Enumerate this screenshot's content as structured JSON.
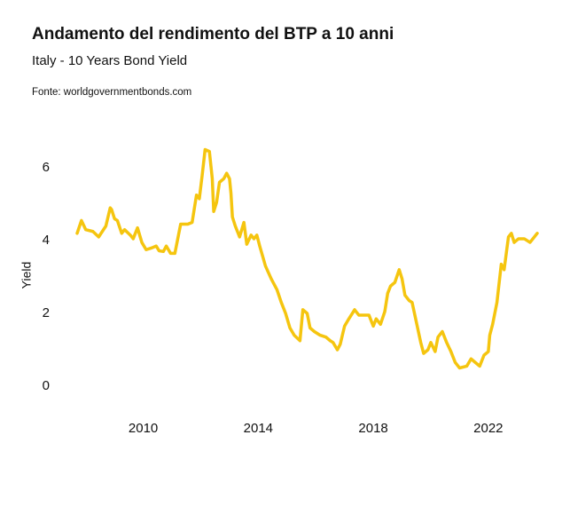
{
  "chart_data": {
    "type": "line",
    "title": "Andamento del rendimento del BTP a 10 anni",
    "subtitle": "Italy - 10 Years Bond Yield",
    "source": "Fonte: worldgovernmentbonds.com",
    "y_label": "Yield",
    "color": "#f5c50f",
    "grid": false,
    "x": [
      2007.7,
      2007.85,
      2008.0,
      2008.25,
      2008.45,
      2008.7,
      2008.85,
      2008.9,
      2009.0,
      2009.1,
      2009.25,
      2009.35,
      2009.55,
      2009.65,
      2009.8,
      2009.95,
      2010.1,
      2010.3,
      2010.45,
      2010.55,
      2010.7,
      2010.8,
      2010.95,
      2011.1,
      2011.3,
      2011.55,
      2011.7,
      2011.85,
      2011.95,
      2012.05,
      2012.15,
      2012.3,
      2012.4,
      2012.45,
      2012.55,
      2012.65,
      2012.8,
      2012.9,
      2013.0,
      2013.05,
      2013.1,
      2013.2,
      2013.35,
      2013.5,
      2013.6,
      2013.75,
      2013.85,
      2013.95,
      2014.05,
      2014.25,
      2014.45,
      2014.65,
      2014.8,
      2014.95,
      2015.1,
      2015.25,
      2015.45,
      2015.55,
      2015.7,
      2015.8,
      2015.95,
      2016.15,
      2016.35,
      2016.5,
      2016.6,
      2016.75,
      2016.85,
      2017.0,
      2017.15,
      2017.35,
      2017.5,
      2017.7,
      2017.85,
      2018.0,
      2018.1,
      2018.25,
      2018.4,
      2018.5,
      2018.6,
      2018.75,
      2018.9,
      2019.0,
      2019.1,
      2019.25,
      2019.35,
      2019.5,
      2019.65,
      2019.75,
      2019.9,
      2020.0,
      2020.15,
      2020.25,
      2020.4,
      2020.55,
      2020.7,
      2020.85,
      2021.0,
      2021.25,
      2021.4,
      2021.55,
      2021.7,
      2021.85,
      2022.0,
      2022.05,
      2022.15,
      2022.3,
      2022.45,
      2022.55,
      2022.7,
      2022.8,
      2022.9,
      2023.05,
      2023.25,
      2023.45,
      2023.7
    ],
    "values": [
      4.2,
      4.55,
      4.3,
      4.25,
      4.1,
      4.4,
      4.9,
      4.85,
      4.6,
      4.55,
      4.2,
      4.3,
      4.15,
      4.05,
      4.35,
      3.95,
      3.75,
      3.8,
      3.85,
      3.72,
      3.7,
      3.85,
      3.65,
      3.65,
      4.45,
      4.45,
      4.5,
      5.25,
      5.15,
      5.8,
      6.5,
      6.45,
      5.7,
      4.8,
      5.05,
      5.6,
      5.7,
      5.85,
      5.7,
      5.3,
      4.65,
      4.4,
      4.1,
      4.5,
      3.9,
      4.15,
      4.05,
      4.15,
      3.85,
      3.3,
      2.95,
      2.65,
      2.3,
      2.0,
      1.6,
      1.4,
      1.25,
      2.1,
      2.0,
      1.6,
      1.5,
      1.4,
      1.35,
      1.25,
      1.2,
      1.0,
      1.15,
      1.65,
      1.85,
      2.1,
      1.95,
      1.95,
      1.95,
      1.65,
      1.85,
      1.7,
      2.05,
      2.55,
      2.75,
      2.85,
      3.2,
      2.95,
      2.5,
      2.35,
      2.3,
      1.75,
      1.2,
      0.9,
      1.0,
      1.2,
      0.95,
      1.35,
      1.5,
      1.2,
      0.95,
      0.65,
      0.5,
      0.55,
      0.75,
      0.65,
      0.55,
      0.85,
      0.95,
      1.4,
      1.7,
      2.3,
      3.35,
      3.2,
      4.1,
      4.2,
      3.95,
      4.05,
      4.05,
      3.95,
      4.2
    ],
    "xlim": [
      2007.7,
      2023.7
    ],
    "xticks": [
      2010,
      2014,
      2018,
      2022
    ],
    "ylim": [
      0,
      6.5
    ],
    "yticks": [
      0,
      2,
      4,
      6
    ]
  }
}
